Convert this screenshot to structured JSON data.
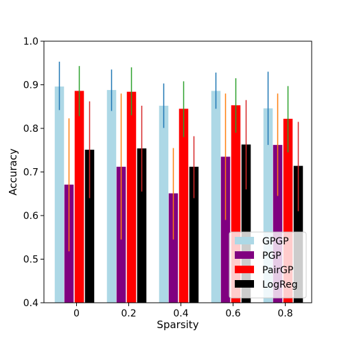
{
  "chart_data": {
    "type": "bar",
    "xlabel": "Sparsity",
    "ylabel": "Accuracy",
    "categories": [
      "0",
      "0.2",
      "0.4",
      "0.6",
      "0.8"
    ],
    "ylim": [
      0.4,
      1.0
    ],
    "yticks": [
      "0.4",
      "0.5",
      "0.6",
      "0.7",
      "0.8",
      "0.9",
      "1.0"
    ],
    "grid": false,
    "legend_position": "bottom-right",
    "series": [
      {
        "name": "GPGP",
        "color": "#add8e6",
        "error_color": "#1f77b4",
        "values": [
          0.896,
          0.888,
          0.852,
          0.886,
          0.846
        ],
        "error_low": [
          0.842,
          0.84,
          0.801,
          0.845,
          0.762
        ],
        "error_high": [
          0.953,
          0.935,
          0.903,
          0.928,
          0.93
        ]
      },
      {
        "name": "PGP",
        "color": "#800080",
        "error_color": "#ff7f0e",
        "values": [
          0.671,
          0.712,
          0.651,
          0.735,
          0.762
        ],
        "error_low": [
          0.518,
          0.545,
          0.545,
          0.59,
          0.645
        ],
        "error_high": [
          0.823,
          0.88,
          0.755,
          0.88,
          0.88
        ]
      },
      {
        "name": "PairGP",
        "color": "#ff0000",
        "error_color": "#2ca02c",
        "values": [
          0.886,
          0.884,
          0.845,
          0.853,
          0.822
        ],
        "error_low": [
          0.828,
          0.83,
          0.78,
          0.79,
          0.745
        ],
        "error_high": [
          0.943,
          0.94,
          0.908,
          0.915,
          0.897
        ]
      },
      {
        "name": "LogReg",
        "color": "#000000",
        "error_color": "#d62728",
        "values": [
          0.751,
          0.754,
          0.712,
          0.763,
          0.714
        ],
        "error_low": [
          0.64,
          0.655,
          0.64,
          0.66,
          0.61
        ],
        "error_high": [
          0.862,
          0.852,
          0.782,
          0.865,
          0.815
        ]
      }
    ]
  }
}
